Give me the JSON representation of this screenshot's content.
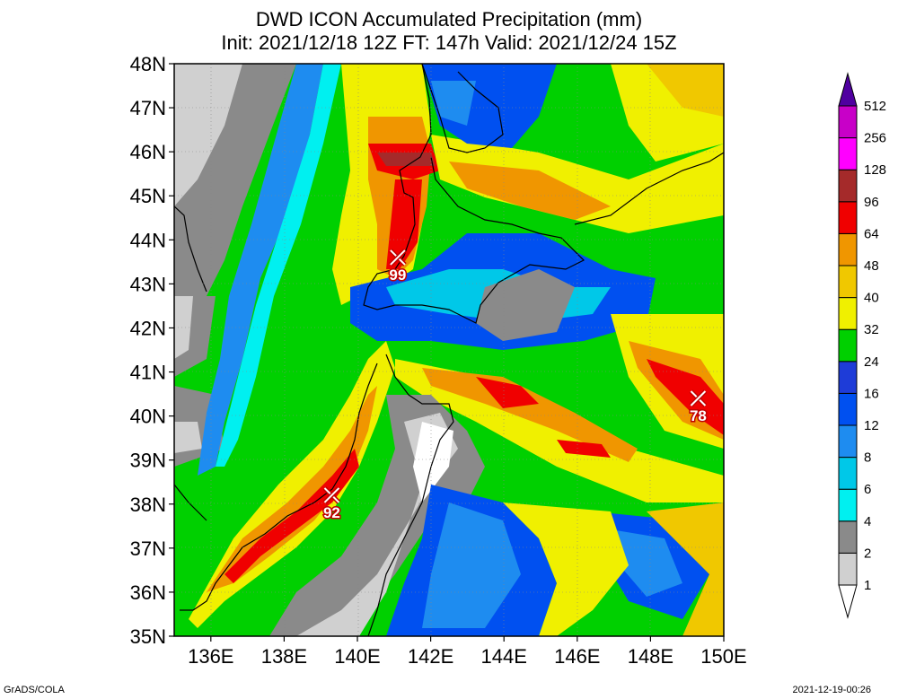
{
  "title_line1": "DWD ICON Accumulated Precipitation (mm)",
  "title_line2": "Init: 2021/12/18 12Z  FT: 147h  Valid: 2021/12/24 15Z",
  "map": {
    "lat_range": [
      35,
      48
    ],
    "lon_range": [
      135,
      150
    ],
    "lat_labels": [
      "35N",
      "36N",
      "37N",
      "38N",
      "39N",
      "40N",
      "41N",
      "42N",
      "43N",
      "44N",
      "45N",
      "46N",
      "47N",
      "48N"
    ],
    "lon_labels": [
      "136E",
      "138E",
      "140E",
      "142E",
      "144E",
      "146E",
      "148E",
      "150E"
    ],
    "lon_values": [
      136,
      138,
      140,
      142,
      144,
      146,
      148,
      150
    ]
  },
  "colorbar": {
    "levels": [
      "1",
      "2",
      "4",
      "6",
      "8",
      "12",
      "16",
      "24",
      "32",
      "40",
      "48",
      "64",
      "96",
      "128",
      "256",
      "512"
    ],
    "colors": [
      "#d0d0d0",
      "#8a8a8a",
      "#00f0f0",
      "#00c8e8",
      "#1e8cf0",
      "#0050f0",
      "#1e3cd8",
      "#00d000",
      "#f0f000",
      "#f0c800",
      "#f09600",
      "#f00000",
      "#a52a2a",
      "#ff00ff",
      "#c800c8",
      "#8c00c8",
      "#5000a0"
    ]
  },
  "markers": [
    {
      "label": "99",
      "lon": 141.1,
      "lat": 43.6
    },
    {
      "label": "78",
      "lon": 149.3,
      "lat": 40.4
    },
    {
      "label": "92",
      "lon": 139.3,
      "lat": 38.2
    }
  ],
  "footer_left": "GrADS/COLA",
  "footer_right": "2021-12-19-00:26"
}
